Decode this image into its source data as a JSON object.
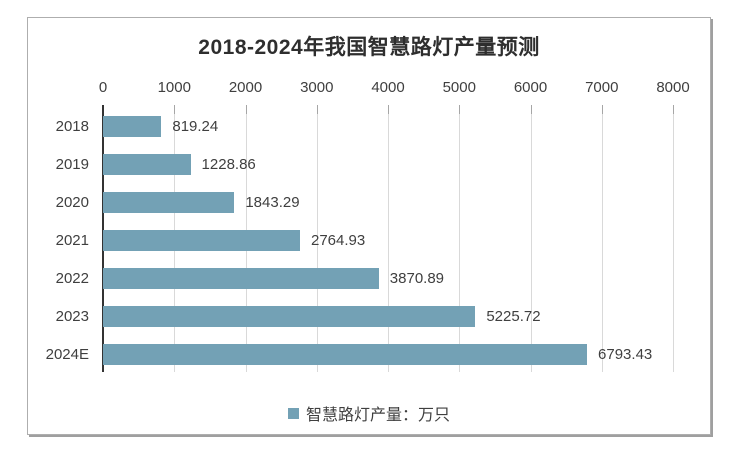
{
  "chart_data": {
    "type": "bar",
    "orientation": "horizontal",
    "title": "2018-2024年我国智慧路灯产量预测",
    "categories": [
      "2018",
      "2019",
      "2020",
      "2021",
      "2022",
      "2023",
      "2024E"
    ],
    "values": [
      819.24,
      1228.86,
      1843.29,
      2764.93,
      3870.89,
      5225.72,
      6793.43
    ],
    "value_labels": [
      "819.24",
      "1228.86",
      "1843.29",
      "2764.93",
      "3870.89",
      "5225.72",
      "6793.43"
    ],
    "xlabel": "",
    "ylabel": "",
    "xlim": [
      0,
      8000
    ],
    "x_ticks": [
      0,
      1000,
      2000,
      3000,
      4000,
      5000,
      6000,
      7000,
      8000
    ],
    "grid": true,
    "legend": "智慧路灯产量：万只",
    "legend_position": "bottom",
    "colors": {
      "bar": "#73a1b5",
      "text": "#3f3f3f",
      "gridline": "#d9d9d9",
      "axis_line": "#333333"
    }
  }
}
